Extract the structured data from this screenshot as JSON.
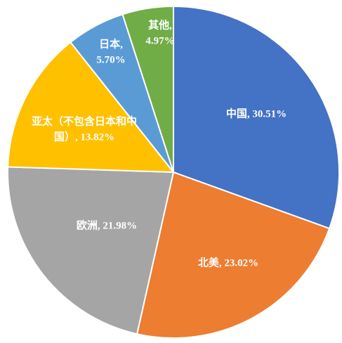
{
  "chart_data": {
    "type": "pie",
    "labels": [
      [
        "中国, 30.51%"
      ],
      [
        "北美, 23.02%"
      ],
      [
        "欧洲, 21.98%"
      ],
      [
        "亚太（不包含日本和中",
        "国）, 13.82%"
      ],
      [
        "日本,",
        "5.70%"
      ],
      [
        "其他,",
        "4.97%"
      ]
    ],
    "values": [
      30.51,
      23.02,
      21.98,
      13.82,
      5.7,
      4.97
    ],
    "colors": [
      "#4472c4",
      "#ed7d31",
      "#a5a5a5",
      "#ffc000",
      "#5b9bd5",
      "#70ad47"
    ]
  }
}
